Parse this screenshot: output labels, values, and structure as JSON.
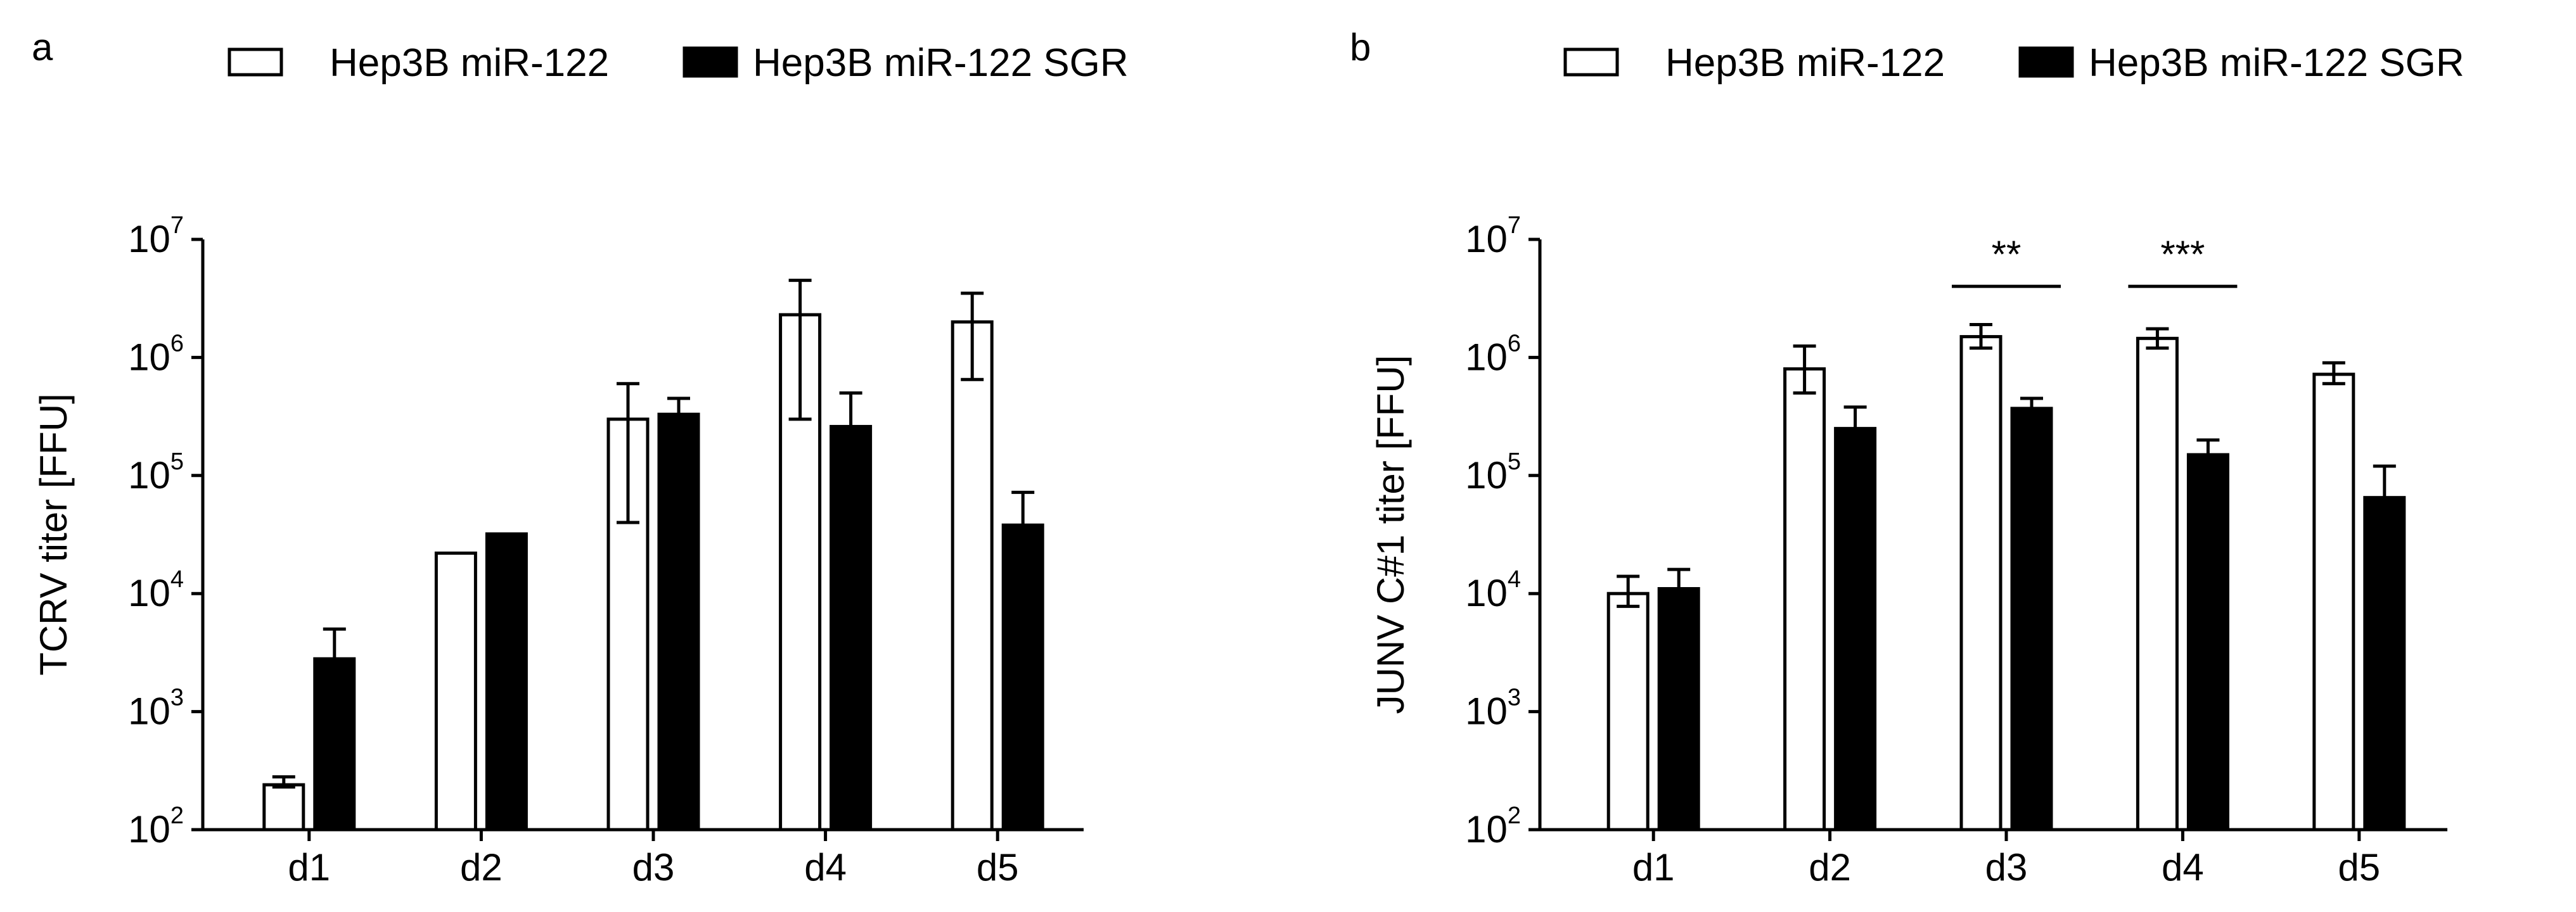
{
  "chart_data": [
    {
      "type": "bar",
      "panel": "a",
      "ylabel": "TCRV  titer [FFU]",
      "yscale": "log",
      "ylim": [
        100,
        10000000
      ],
      "y_ticks": [
        {
          "base": "10",
          "exp": "2",
          "value": 100
        },
        {
          "base": "10",
          "exp": "3",
          "value": 1000
        },
        {
          "base": "10",
          "exp": "4",
          "value": 10000
        },
        {
          "base": "10",
          "exp": "5",
          "value": 100000
        },
        {
          "base": "10",
          "exp": "6",
          "value": 1000000
        },
        {
          "base": "10",
          "exp": "7",
          "value": 10000000
        }
      ],
      "categories": [
        "d1",
        "d2",
        "d3",
        "d4",
        "d5"
      ],
      "legend": [
        "Hep3B miR-122",
        "Hep3B miR-122 SGR"
      ],
      "series": [
        {
          "name": "Hep3B miR-122",
          "fill": "#ffffff",
          "values": [
            240,
            22000,
            300000,
            2300000,
            2000000
          ],
          "err_low": [
            230,
            null,
            40000,
            300000,
            650000
          ],
          "err_high": [
            280,
            null,
            600000,
            4500000,
            3500000
          ]
        },
        {
          "name": "Hep3B miR-122 SGR",
          "fill": "#000000",
          "values": [
            2800,
            32000,
            330000,
            260000,
            38000
          ],
          "err_low": [
            null,
            null,
            null,
            null,
            null
          ],
          "err_high": [
            5000,
            null,
            450000,
            500000,
            72000
          ]
        }
      ],
      "significance": []
    },
    {
      "type": "bar",
      "panel": "b",
      "ylabel": "JUNV C#1  titer [FFU]",
      "yscale": "log",
      "ylim": [
        100,
        10000000
      ],
      "y_ticks": [
        {
          "base": "10",
          "exp": "2",
          "value": 100
        },
        {
          "base": "10",
          "exp": "3",
          "value": 1000
        },
        {
          "base": "10",
          "exp": "4",
          "value": 10000
        },
        {
          "base": "10",
          "exp": "5",
          "value": 100000
        },
        {
          "base": "10",
          "exp": "6",
          "value": 1000000
        },
        {
          "base": "10",
          "exp": "7",
          "value": 10000000
        }
      ],
      "categories": [
        "d1",
        "d2",
        "d3",
        "d4",
        "d5"
      ],
      "legend": [
        "Hep3B miR-122",
        "Hep3B miR-122 SGR"
      ],
      "series": [
        {
          "name": "Hep3B miR-122",
          "fill": "#ffffff",
          "values": [
            10000,
            800000,
            1500000,
            1450000,
            720000
          ],
          "err_low": [
            7800,
            500000,
            1200000,
            1200000,
            600000
          ],
          "err_high": [
            14000,
            1250000,
            1900000,
            1750000,
            900000
          ]
        },
        {
          "name": "Hep3B miR-122 SGR",
          "fill": "#000000",
          "values": [
            11000,
            250000,
            370000,
            150000,
            65000
          ],
          "err_low": [
            null,
            null,
            null,
            null,
            null
          ],
          "err_high": [
            16000,
            380000,
            450000,
            200000,
            120000
          ]
        }
      ],
      "significance": [
        {
          "category": "d3",
          "label": "**"
        },
        {
          "category": "d4",
          "label": "***"
        }
      ]
    }
  ]
}
